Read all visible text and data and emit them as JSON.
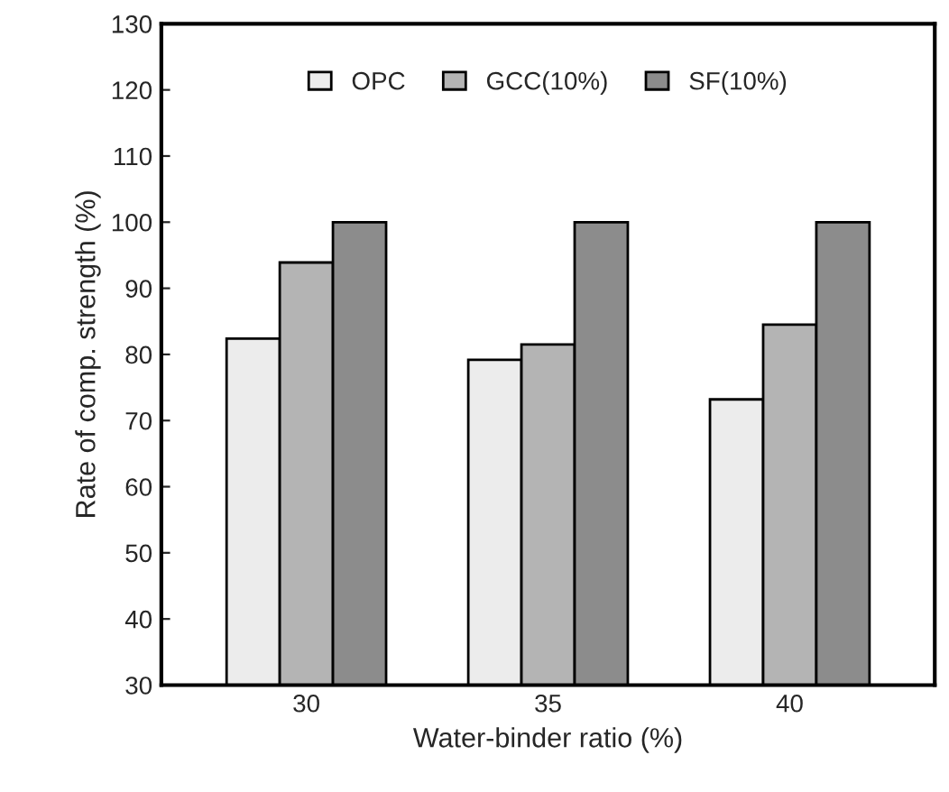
{
  "chart_data": {
    "type": "bar",
    "xlabel": "Water-binder ratio (%)",
    "ylabel": "Rate of comp. strength (%)",
    "categories": [
      "30",
      "35",
      "40"
    ],
    "series": [
      {
        "name": "OPC",
        "color": "#ececec",
        "values": [
          82.4,
          79.2,
          73.2
        ]
      },
      {
        "name": "GCC(10%)",
        "color": "#b4b4b4",
        "values": [
          93.9,
          81.5,
          84.5
        ]
      },
      {
        "name": "SF(10%)",
        "color": "#8c8c8c",
        "values": [
          100,
          100,
          100
        ]
      }
    ],
    "ylim": [
      30,
      130
    ],
    "yticks": [
      30,
      40,
      50,
      60,
      70,
      80,
      90,
      100,
      110,
      120,
      130
    ],
    "grid": false,
    "legend": "top"
  }
}
